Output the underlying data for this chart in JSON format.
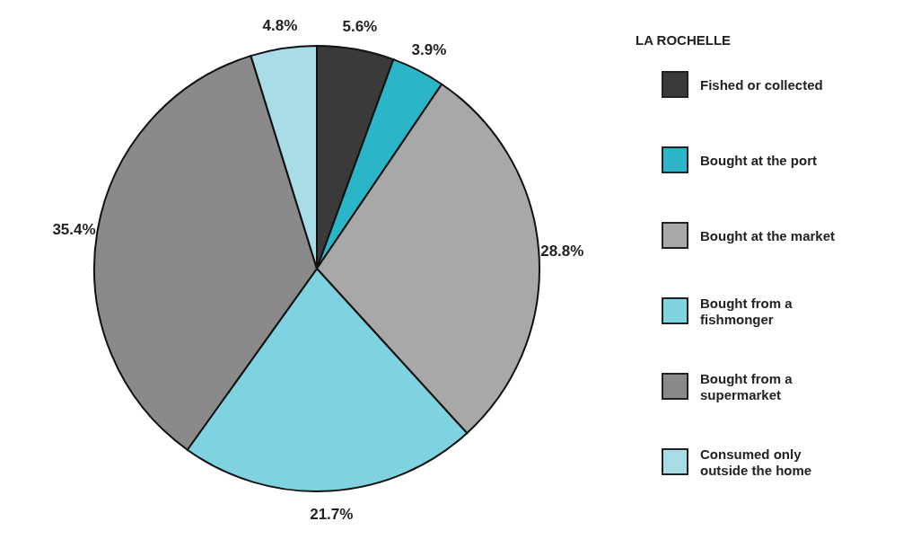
{
  "chart_data": {
    "type": "pie",
    "legend_title": "LA ROCHELLE",
    "legend": "right",
    "categories": [
      "Fished or collected",
      "Bought at the port",
      "Bought at the market",
      "Bought from a fishmonger",
      "Bought from a supermarket",
      "Consumed only outside the home"
    ],
    "values": [
      5.6,
      3.9,
      28.8,
      21.7,
      35.4,
      4.8
    ],
    "colors": [
      "#3a3a3a",
      "#2bb5c8",
      "#a8a8a8",
      "#7fd3e0",
      "#8a8a8a",
      "#a8dde8"
    ],
    "value_labels": [
      "5.6%",
      "3.9%",
      "28.8%",
      "21.7%",
      "35.4%",
      "4.8%"
    ]
  }
}
